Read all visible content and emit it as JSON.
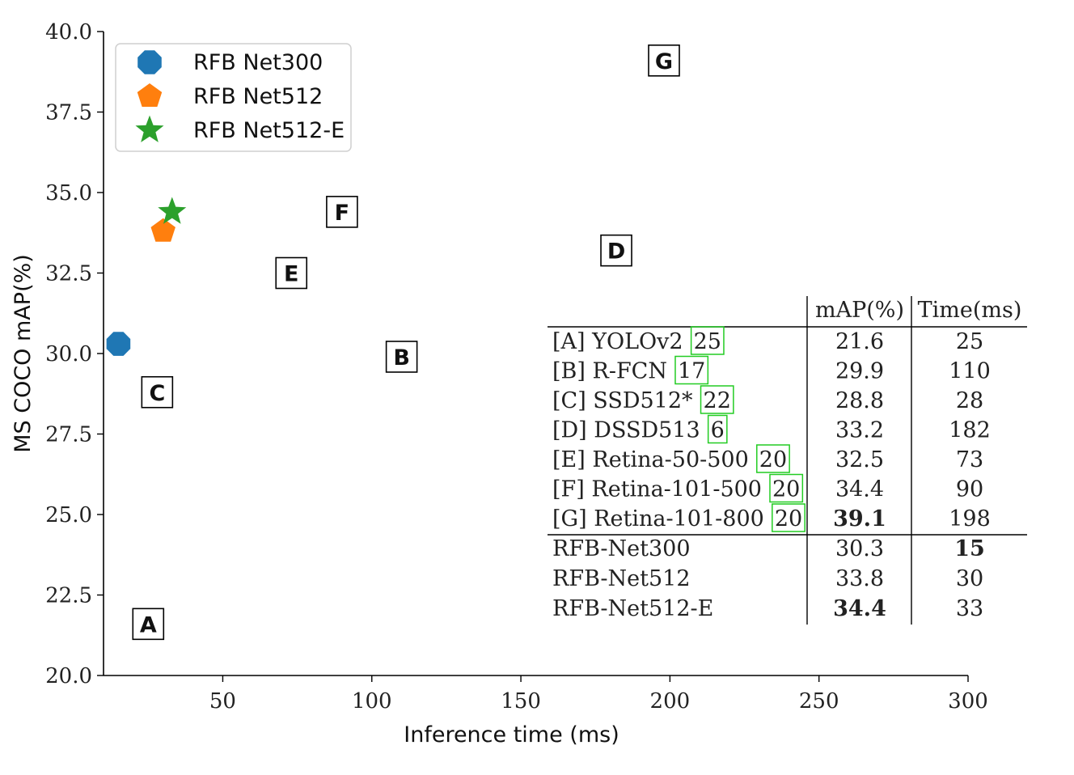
{
  "chart_data": {
    "type": "scatter",
    "xlabel": "Inference time (ms)",
    "ylabel": "MS COCO mAP(%)",
    "xlim": [
      10,
      300
    ],
    "ylim": [
      20.0,
      40.0
    ],
    "xticks": [
      50,
      100,
      150,
      200,
      250,
      300
    ],
    "yticks": [
      20.0,
      22.5,
      25.0,
      27.5,
      30.0,
      32.5,
      35.0,
      37.5,
      40.0
    ],
    "grid": false,
    "legend_position": "top-left",
    "series": [
      {
        "name": "RFB Net300",
        "marker": "octagon",
        "color": "#1f77b4",
        "x": [
          15
        ],
        "y": [
          30.3
        ]
      },
      {
        "name": "RFB Net512",
        "marker": "pentagon",
        "color": "#ff7f0e",
        "x": [
          30
        ],
        "y": [
          33.8
        ]
      },
      {
        "name": "RFB Net512-E",
        "marker": "star",
        "color": "#2ca02c",
        "x": [
          33
        ],
        "y": [
          34.4
        ]
      }
    ],
    "boxed_points": [
      {
        "label": "A",
        "x": 25,
        "y": 21.6
      },
      {
        "label": "B",
        "x": 110,
        "y": 29.9
      },
      {
        "label": "C",
        "x": 28,
        "y": 28.8
      },
      {
        "label": "D",
        "x": 182,
        "y": 33.2
      },
      {
        "label": "E",
        "x": 73,
        "y": 32.5
      },
      {
        "label": "F",
        "x": 90,
        "y": 34.4
      },
      {
        "label": "G",
        "x": 198,
        "y": 39.1
      }
    ],
    "table": {
      "headers": [
        "mAP(%)",
        "Time(ms)"
      ],
      "rows": [
        {
          "prefix": "[A]",
          "name": "YOLOv2",
          "ref": "25",
          "map": "21.6",
          "time": "25",
          "map_bold": false,
          "time_bold": false
        },
        {
          "prefix": "[B]",
          "name": "R-FCN",
          "ref": "17",
          "map": "29.9",
          "time": "110",
          "map_bold": false,
          "time_bold": false
        },
        {
          "prefix": "[C]",
          "name": "SSD512*",
          "ref": "22",
          "map": "28.8",
          "time": "28",
          "map_bold": false,
          "time_bold": false
        },
        {
          "prefix": "[D]",
          "name": "DSSD513",
          "ref": "6",
          "map": "33.2",
          "time": "182",
          "map_bold": false,
          "time_bold": false
        },
        {
          "prefix": "[E]",
          "name": "Retina-50-500",
          "ref": "20",
          "map": "32.5",
          "time": "73",
          "map_bold": false,
          "time_bold": false
        },
        {
          "prefix": "[F]",
          "name": "Retina-101-500",
          "ref": "20",
          "map": "34.4",
          "time": "90",
          "map_bold": false,
          "time_bold": false
        },
        {
          "prefix": "[G]",
          "name": "Retina-101-800",
          "ref": "20",
          "map": "39.1",
          "time": "198",
          "map_bold": true,
          "time_bold": false
        }
      ],
      "ours": [
        {
          "name": "RFB-Net300",
          "map": "30.3",
          "time": "15",
          "map_bold": false,
          "time_bold": true
        },
        {
          "name": "RFB-Net512",
          "map": "33.8",
          "time": "30",
          "map_bold": false,
          "time_bold": false
        },
        {
          "name": "RFB-Net512-E",
          "map": "34.4",
          "time": "33",
          "map_bold": true,
          "time_bold": false
        }
      ]
    }
  }
}
